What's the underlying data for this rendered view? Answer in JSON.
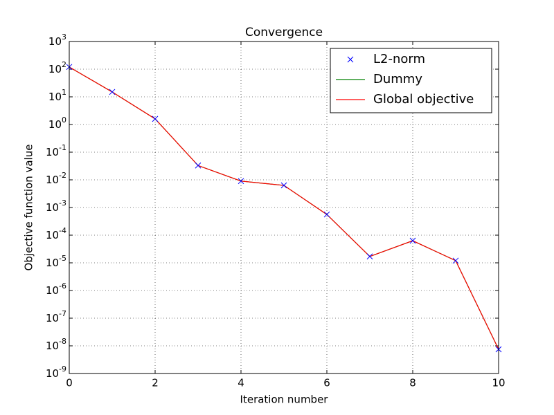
{
  "chart_data": {
    "type": "line",
    "title": "Convergence",
    "xlabel": "Iteration number",
    "ylabel": "Objective function value",
    "x": [
      0,
      1,
      2,
      3,
      4,
      5,
      6,
      7,
      8,
      9,
      10
    ],
    "series": [
      {
        "name": "L2-norm",
        "color": "#0000ff",
        "style": "marker",
        "values": [
          120,
          15,
          1.6,
          0.033,
          0.009,
          0.0063,
          0.00056,
          1.7e-05,
          6.3e-05,
          1.2e-05,
          7.5e-09
        ]
      },
      {
        "name": "Dummy",
        "color": "#008000",
        "style": "line",
        "values": [
          120,
          15,
          1.6,
          0.033,
          0.009,
          0.0063,
          0.00056,
          1.7e-05,
          6.3e-05,
          1.2e-05,
          7.5e-09
        ]
      },
      {
        "name": "Global objective",
        "color": "#ff0000",
        "style": "line",
        "values": [
          120,
          15,
          1.6,
          0.033,
          0.009,
          0.0063,
          0.00056,
          1.7e-05,
          6.3e-05,
          1.2e-05,
          7.5e-09
        ]
      }
    ],
    "xlim": [
      0,
      10
    ],
    "xticks": [
      0,
      2,
      4,
      6,
      8,
      10
    ],
    "ylim": [
      1e-09,
      1000
    ],
    "yscale": "log",
    "yticks": [
      {
        "value": 1e-09,
        "label": "10^-9"
      },
      {
        "value": 1e-08,
        "label": "10^-8"
      },
      {
        "value": 1e-07,
        "label": "10^-7"
      },
      {
        "value": 1e-06,
        "label": "10^-6"
      },
      {
        "value": 1e-05,
        "label": "10^-5"
      },
      {
        "value": 0.0001,
        "label": "10^-4"
      },
      {
        "value": 0.001,
        "label": "10^-3"
      },
      {
        "value": 0.01,
        "label": "10^-2"
      },
      {
        "value": 0.1,
        "label": "10^-1"
      },
      {
        "value": 1,
        "label": "10^0"
      },
      {
        "value": 10,
        "label": "10^1"
      },
      {
        "value": 100,
        "label": "10^2"
      },
      {
        "value": 1000,
        "label": "10^3"
      }
    ],
    "grid": true,
    "legend": "upper right"
  }
}
